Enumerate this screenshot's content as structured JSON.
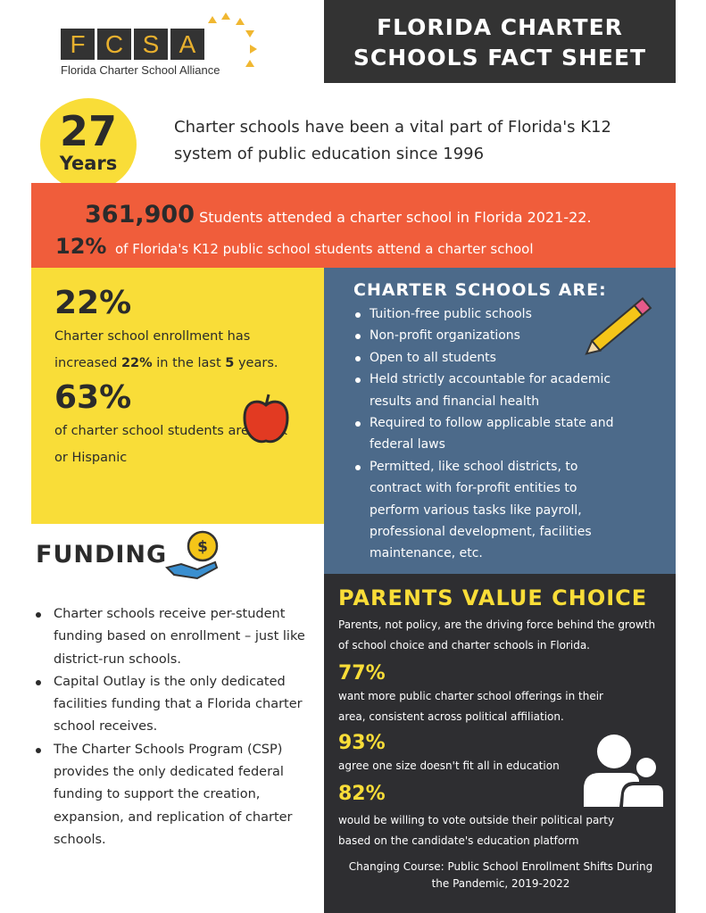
{
  "header": {
    "logo_letters": [
      "F",
      "C",
      "S",
      "A"
    ],
    "logo_subtitle": "Florida Charter School Alliance",
    "title_line1": "FLORIDA CHARTER",
    "title_line2": "SCHOOLS FACT SHEET"
  },
  "years": {
    "number": "27",
    "label": "Years",
    "text": "Charter schools have been a vital part of Florida's K12 system of public education since 1996"
  },
  "enrollment": {
    "count": "361,900",
    "count_text": "Students attended a charter school in Florida 2021-22.",
    "percent": "12%",
    "percent_text": "of Florida's K12 public school students attend a charter school"
  },
  "growth": {
    "stat1": "22%",
    "text1_pre": "Charter school enrollment has increased ",
    "text1_bold": "22%",
    "text1_mid": " in the last ",
    "text1_bold2": "5",
    "text1_post": " years.",
    "stat2": "63%",
    "text2": "of charter school students are black or Hispanic"
  },
  "charter_are": {
    "heading": "CHARTER SCHOOLS ARE:",
    "items": [
      "Tuition-free public schools",
      "Non-profit organizations",
      "Open to all students",
      "Held strictly accountable for academic results and financial health",
      "Required to follow applicable state and federal laws",
      "Permitted, like school districts, to contract with for-profit entities to perform various tasks like payroll, professional development, facilities maintenance, etc."
    ]
  },
  "funding": {
    "heading": "FUNDING",
    "items": [
      "Charter schools receive per-student funding based on enrollment – just like district-run schools.",
      "Capital Outlay is the only dedicated facilities funding that a Florida charter school receives.",
      "The Charter Schools Program (CSP) provides the only dedicated federal funding to support the creation, expansion, and replication of charter schools."
    ]
  },
  "parents": {
    "heading": "PARENTS VALUE CHOICE",
    "intro": "Parents, not policy, are the driving force behind the growth of school choice and charter schools in Florida.",
    "stats": [
      {
        "value": "77%",
        "text": "want more public charter school offerings in their area, consistent across political affiliation."
      },
      {
        "value": "93%",
        "text": "agree one size doesn't fit all in education"
      },
      {
        "value": "82%",
        "text": "would be willing to vote outside their political party based on the candidate's education platform"
      }
    ],
    "source": "Changing Course: Public School Enrollment Shifts During the Pandemic, 2019-2022"
  },
  "colors": {
    "orange": "#f05d3b",
    "yellow": "#f9dd38",
    "blue": "#4c6a8a",
    "dark": "#2e2e31"
  }
}
